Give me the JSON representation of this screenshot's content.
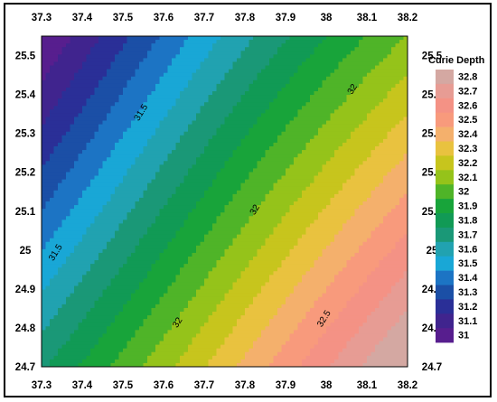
{
  "chart_data": {
    "type": "heatmap",
    "subtype": "filled-contour",
    "title": "",
    "xlabel": "",
    "ylabel": "",
    "xlim": [
      37.3,
      38.2
    ],
    "ylim": [
      24.7,
      25.55
    ],
    "x_ticks": [
      "37.3",
      "37.4",
      "37.5",
      "37.6",
      "37.7",
      "37.8",
      "37.9",
      "38",
      "38.1",
      "38.2"
    ],
    "y_ticks": [
      "25.5",
      "25.4",
      "25.3",
      "25.2",
      "25.1",
      "25",
      "24.9",
      "24.8",
      "24.7"
    ],
    "legend": {
      "title": "Curie Depth",
      "position": "right",
      "levels": [
        {
          "value": "32.8",
          "color": "#d4a8a2"
        },
        {
          "value": "32.7",
          "color": "#e79c94"
        },
        {
          "value": "32.6",
          "color": "#f49285"
        },
        {
          "value": "32.5",
          "color": "#f89a7c"
        },
        {
          "value": "32.4",
          "color": "#f4b06c"
        },
        {
          "value": "32.3",
          "color": "#e9c23f"
        },
        {
          "value": "32.2",
          "color": "#c7c51d"
        },
        {
          "value": "32.1",
          "color": "#95c31a"
        },
        {
          "value": "32",
          "color": "#4fb428"
        },
        {
          "value": "31.9",
          "color": "#18a43a"
        },
        {
          "value": "31.8",
          "color": "#119a55"
        },
        {
          "value": "31.7",
          "color": "#1a9877"
        },
        {
          "value": "31.6",
          "color": "#21a2b0"
        },
        {
          "value": "31.5",
          "color": "#19a7d6"
        },
        {
          "value": "31.4",
          "color": "#1c74c4"
        },
        {
          "value": "31.3",
          "color": "#1b4fa6"
        },
        {
          "value": "31.2",
          "color": "#2a2f97"
        },
        {
          "value": "31.1",
          "color": "#40248e"
        },
        {
          "value": "31",
          "color": "#571e8e"
        }
      ]
    },
    "contour_labels": [
      {
        "text": "31.5",
        "x": 37.55,
        "y": 25.35
      },
      {
        "text": "31.5",
        "x": 37.34,
        "y": 24.99
      },
      {
        "text": "32",
        "x": 38.07,
        "y": 25.41
      },
      {
        "text": "32",
        "x": 37.83,
        "y": 25.1
      },
      {
        "text": "32",
        "x": 37.64,
        "y": 24.81
      },
      {
        "text": "32.5",
        "x": 38.0,
        "y": 24.82
      }
    ]
  }
}
